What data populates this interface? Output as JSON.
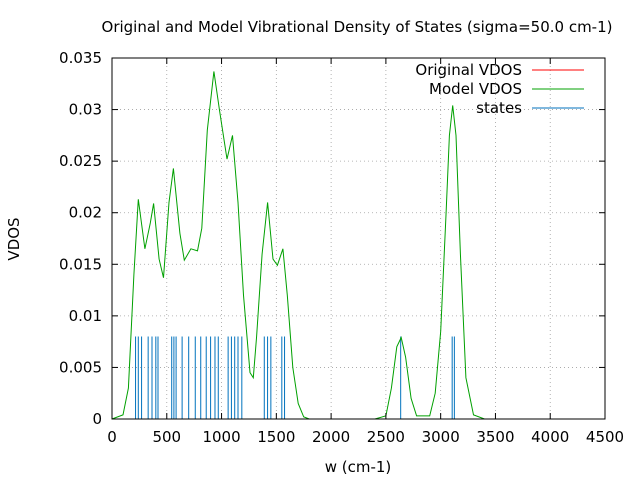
{
  "chart_data": {
    "type": "line",
    "title": "Original and Model Vibrational Density of States (sigma=50.0 cm-1)",
    "xlabel": "w (cm-1)",
    "ylabel": "VDOS",
    "xlim": [
      0,
      4500
    ],
    "ylim": [
      0,
      0.035
    ],
    "xticks": [
      0,
      500,
      1000,
      1500,
      2000,
      2500,
      3000,
      3500,
      4000,
      4500
    ],
    "yticks": [
      0,
      0.005,
      0.01,
      0.015,
      0.02,
      0.025,
      0.03,
      0.035
    ],
    "xtick_labels": [
      "0",
      "500",
      "1000",
      "1500",
      "2000",
      "2500",
      "3000",
      "3500",
      "4000",
      "4500"
    ],
    "ytick_labels": [
      "0",
      "0.005",
      "0.01",
      "0.015",
      "0.02",
      "0.025",
      "0.03",
      "0.035"
    ],
    "grid": true,
    "legend_position": "top-right",
    "legend": [
      {
        "label": "Original VDOS",
        "color": "#ff0000"
      },
      {
        "label": "Model VDOS",
        "color": "#00a000"
      },
      {
        "label": "states",
        "color": "#0072bd"
      }
    ],
    "sigma": 50.0,
    "states_height": 0.008,
    "states": [
      215,
      240,
      270,
      330,
      365,
      400,
      420,
      545,
      565,
      585,
      640,
      700,
      760,
      810,
      860,
      900,
      940,
      970,
      1060,
      1090,
      1120,
      1150,
      1185,
      1390,
      1420,
      1450,
      1550,
      1575,
      2635,
      3105,
      3125
    ],
    "model_x": [
      0,
      100,
      150,
      200,
      240,
      300,
      350,
      380,
      430,
      470,
      520,
      560,
      620,
      660,
      720,
      780,
      820,
      870,
      930,
      980,
      1050,
      1100,
      1150,
      1200,
      1260,
      1290,
      1320,
      1370,
      1420,
      1470,
      1510,
      1560,
      1600,
      1650,
      1700,
      1750,
      1800,
      2400,
      2500,
      2550,
      2600,
      2640,
      2680,
      2730,
      2780,
      2900,
      2950,
      3000,
      3050,
      3080,
      3110,
      3140,
      3180,
      3230,
      3300,
      3400,
      4300
    ],
    "model_y": [
      0,
      0.0004,
      0.003,
      0.014,
      0.0213,
      0.0165,
      0.019,
      0.0209,
      0.0155,
      0.0137,
      0.021,
      0.0243,
      0.018,
      0.0154,
      0.0165,
      0.0163,
      0.0185,
      0.028,
      0.0337,
      0.03,
      0.0252,
      0.0275,
      0.021,
      0.012,
      0.0045,
      0.004,
      0.008,
      0.016,
      0.021,
      0.0155,
      0.0149,
      0.0165,
      0.012,
      0.005,
      0.0015,
      0.0002,
      0,
      0,
      0.0003,
      0.003,
      0.007,
      0.0079,
      0.006,
      0.002,
      0.0003,
      0.0003,
      0.0025,
      0.0085,
      0.02,
      0.0275,
      0.0304,
      0.0275,
      0.016,
      0.004,
      0.0004,
      0,
      0
    ]
  }
}
